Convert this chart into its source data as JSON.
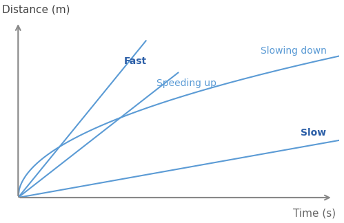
{
  "title": "",
  "xlabel": "Time (s)",
  "ylabel": "Distance (m)",
  "line_color": "#5B9BD5",
  "label_color_bold": "#2B5EA7",
  "label_color_normal": "#5B9BD5",
  "background_color": "#ffffff",
  "fast_label": "Fast",
  "speeding_label": "Speeding up",
  "slowing_label": "Slowing down",
  "slow_label": "Slow",
  "xlim": [
    0,
    10
  ],
  "ylim": [
    0,
    10
  ],
  "axis_color": "#888888",
  "label_fontsize": 10,
  "axis_label_fontsize": 11
}
